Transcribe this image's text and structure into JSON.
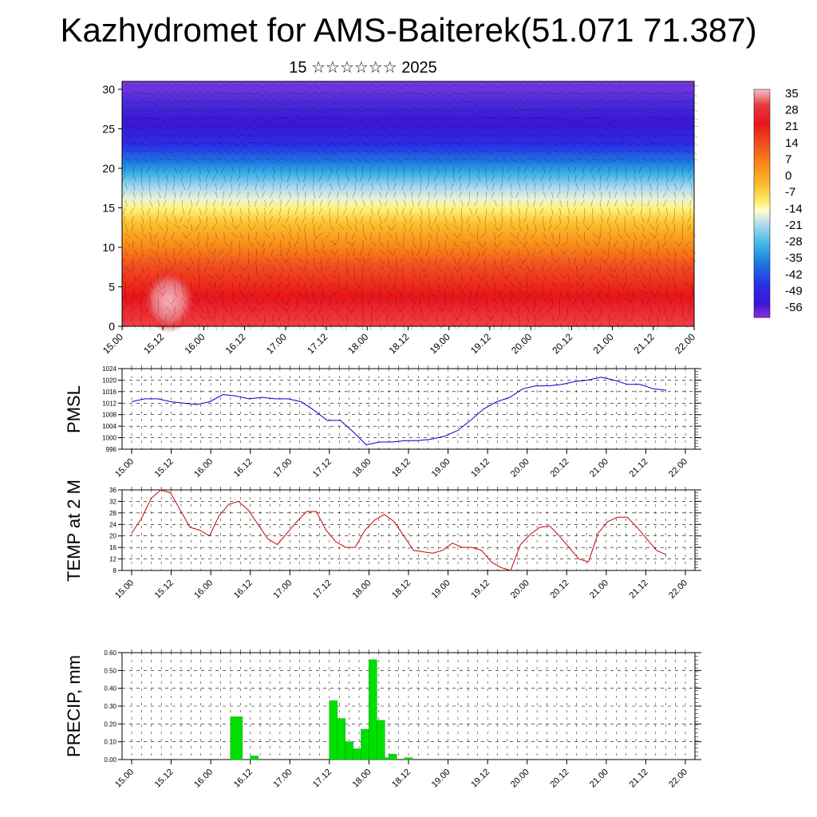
{
  "page": {
    "title": "Kazhydromet for AMS-Baiterek(51.071 71.387)",
    "subtitle": "15 ☆☆☆☆☆☆ 2025"
  },
  "chart_data": [
    {
      "type": "heatmap",
      "title": "",
      "ylabel": "",
      "x_ticks": [
        "15.00",
        "15.12",
        "16.00",
        "16.12",
        "17.00",
        "17.12",
        "18.00",
        "18.12",
        "19.00",
        "19.12",
        "20.00",
        "20.12",
        "21.00",
        "21.12",
        "22.00"
      ],
      "y_ticks": [
        0,
        5,
        10,
        15,
        20,
        25,
        30
      ],
      "ylim": [
        0,
        31
      ],
      "colorbar_labels": [
        "35",
        "28",
        "21",
        "14",
        "7",
        "0",
        "-7",
        "-14",
        "-21",
        "-28",
        "-35",
        "-42",
        "-49",
        "-56"
      ],
      "colorbar_colors": [
        "#f4b0b6",
        "#e43a3e",
        "#e8141b",
        "#f0501e",
        "#f98a19",
        "#fbc02e",
        "#fff27a",
        "#ffffd0",
        "#a6d6f0",
        "#3fb4e8",
        "#1c7ae0",
        "#2a2ee6",
        "#3a16d6",
        "#7a24dc"
      ],
      "description_bands": [
        {
          "height_range": [
            0,
            10
          ],
          "temperature": "20 to 35"
        },
        {
          "height_range": [
            10,
            15
          ],
          "temperature": "0 to 14"
        },
        {
          "height_range": [
            15,
            20
          ],
          "temperature": "-14 to -35"
        },
        {
          "height_range": [
            20,
            27
          ],
          "temperature": "-42 to -56"
        },
        {
          "height_range": [
            27,
            31
          ],
          "temperature": "-49 to -56"
        }
      ]
    },
    {
      "type": "line",
      "ylabel": "PMSL",
      "ylim": [
        996,
        1024
      ],
      "y_ticks": [
        996,
        1000,
        1004,
        1008,
        1012,
        1016,
        1020,
        1024
      ],
      "x_ticks": [
        "15.00",
        "15.12",
        "16.00",
        "16.12",
        "17.00",
        "17.12",
        "18.00",
        "18.12",
        "19.00",
        "19.12",
        "20.00",
        "20.12",
        "21.00",
        "21.12",
        "22.00"
      ],
      "color": "#0000cc",
      "values": [
        1012.5,
        1013.5,
        1013.5,
        1012.5,
        1012,
        1011.5,
        1012.5,
        1015,
        1014.5,
        1013.5,
        1014,
        1013.5,
        1013.5,
        1012.5,
        1009.5,
        1006,
        1006,
        1002,
        997.5,
        998.5,
        998.5,
        999,
        999,
        999.5,
        1000.5,
        1002.5,
        1006,
        1010,
        1012.5,
        1014,
        1017,
        1018,
        1018,
        1018.5,
        1019.5,
        1020,
        1021,
        1020,
        1018.5,
        1018.5,
        1017,
        1016.5
      ]
    },
    {
      "type": "line",
      "ylabel": "TEMP at 2 M",
      "ylim": [
        8,
        36
      ],
      "y_ticks": [
        8,
        12,
        16,
        20,
        24,
        28,
        32,
        36
      ],
      "x_ticks": [
        "15.00",
        "15.12",
        "16.00",
        "16.12",
        "17.00",
        "17.12",
        "18.00",
        "18.12",
        "19.00",
        "19.12",
        "20.00",
        "20.12",
        "21.00",
        "21.12",
        "22.00"
      ],
      "color": "#cc0000",
      "values": [
        21,
        26,
        33,
        36,
        35,
        29,
        23,
        22,
        20,
        27,
        31,
        32,
        29,
        24,
        19,
        17,
        21,
        25,
        28.5,
        28.5,
        22,
        18,
        16,
        16,
        22,
        25.5,
        27.5,
        25,
        20,
        15,
        14.5,
        14,
        15,
        17.5,
        16,
        16,
        15,
        11,
        9,
        8,
        17,
        20.5,
        23,
        23.5,
        20,
        16,
        12,
        11,
        21,
        25,
        26.5,
        26.5,
        23,
        19,
        15,
        13.5
      ]
    },
    {
      "type": "bar",
      "ylabel": "PRECIP, mm",
      "ylim": [
        0,
        0.6
      ],
      "y_ticks": [
        "0.00",
        "0.10",
        "0.20",
        "0.30",
        "0.40",
        "0.50",
        "0.60"
      ],
      "x_ticks": [
        "15.00",
        "15.12",
        "16.00",
        "16.12",
        "17.00",
        "17.12",
        "18.00",
        "18.12",
        "19.00",
        "19.12",
        "20.00",
        "20.12",
        "21.00",
        "21.12",
        "22.00"
      ],
      "color": "#00e000",
      "bars": [
        {
          "start": 1.25,
          "end": 1.4,
          "value": 0.24
        },
        {
          "start": 1.5,
          "end": 1.6,
          "value": 0.02
        },
        {
          "start": 2.5,
          "end": 2.6,
          "value": 0.33
        },
        {
          "start": 2.6,
          "end": 2.7,
          "value": 0.23
        },
        {
          "start": 2.7,
          "end": 2.8,
          "value": 0.1
        },
        {
          "start": 2.8,
          "end": 2.9,
          "value": 0.06
        },
        {
          "start": 2.9,
          "end": 3.0,
          "value": 0.17
        },
        {
          "start": 3.0,
          "end": 3.1,
          "value": 0.56
        },
        {
          "start": 3.1,
          "end": 3.2,
          "value": 0.22
        },
        {
          "start": 3.2,
          "end": 3.25,
          "value": 0.01
        },
        {
          "start": 3.25,
          "end": 3.35,
          "value": 0.03
        },
        {
          "start": 3.35,
          "end": 3.45,
          "value": 0.0
        },
        {
          "start": 3.45,
          "end": 3.55,
          "value": 0.01
        }
      ]
    }
  ]
}
